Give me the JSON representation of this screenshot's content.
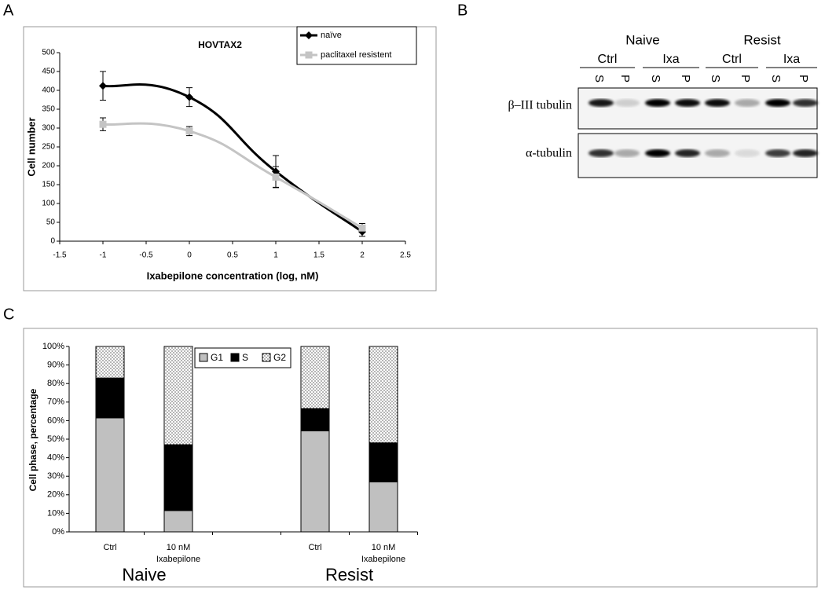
{
  "panels": [
    "A",
    "B",
    "C"
  ],
  "blot": {
    "groups": [
      "Naive",
      "Resist"
    ],
    "treatments": [
      "Ctrl",
      "Ixa",
      "Ctrl",
      "Ixa"
    ],
    "lanes": [
      "S",
      "P",
      "S",
      "P",
      "S",
      "P",
      "S",
      "P"
    ],
    "rows": [
      "β–III tubulin",
      "α-tubulin"
    ]
  },
  "chart_data": [
    {
      "type": "line",
      "title": "HOVTAX2",
      "xlabel": "Ixabepilone concentration (log, nM)",
      "ylabel": "Cell number",
      "x": [
        -1,
        0,
        1,
        2
      ],
      "series": [
        {
          "name": "naïve",
          "color": "#000000",
          "marker": "diamond",
          "values": [
            412,
            382,
            185,
            25
          ],
          "errors": [
            38,
            25,
            42,
            12
          ]
        },
        {
          "name": "paclitaxel resistent",
          "color": "#c4c4c4",
          "marker": "square",
          "values": [
            310,
            292,
            170,
            35
          ],
          "errors": [
            17,
            12,
            28,
            12
          ]
        }
      ],
      "xlim": [
        -1.5,
        2.5
      ],
      "xticks": [
        -1.5,
        -1,
        -0.5,
        0,
        0.5,
        1,
        1.5,
        2,
        2.5
      ],
      "ylim": [
        0,
        500
      ],
      "yticks": [
        0,
        50,
        100,
        150,
        200,
        250,
        300,
        350,
        400,
        450,
        500
      ]
    },
    {
      "type": "stacked_bar",
      "ylabel": "Cell phase, percentage",
      "categories": [
        "Ctrl",
        "10 nM\nIxabepilone",
        null,
        "Ctrl",
        "10 nM\nIxabepilone"
      ],
      "group_labels": [
        "Naive",
        "Resist"
      ],
      "series": [
        {
          "name": "G1",
          "color": "#c0c0c0",
          "values": [
            61.5,
            11.5,
            null,
            54.5,
            27
          ]
        },
        {
          "name": "S",
          "color": "#000000",
          "values": [
            21.5,
            35.5,
            null,
            12,
            21
          ]
        },
        {
          "name": "G2",
          "color": "#ffffff",
          "pattern": "dots",
          "values": [
            17,
            53,
            null,
            33.5,
            52
          ]
        }
      ],
      "ylim": [
        0,
        100
      ],
      "yticks": [
        {
          "value": 0,
          "label": "0%"
        },
        {
          "value": 10,
          "label": "10%"
        },
        {
          "value": 20,
          "label": "20%"
        },
        {
          "value": 30,
          "label": "30%"
        },
        {
          "value": 40,
          "label": "40%"
        },
        {
          "value": 50,
          "label": "50%"
        },
        {
          "value": 60,
          "label": "60%"
        },
        {
          "value": 70,
          "label": "70%"
        },
        {
          "value": 80,
          "label": "80%"
        },
        {
          "value": 90,
          "label": "90%"
        },
        {
          "value": 100,
          "label": "100%"
        }
      ]
    }
  ]
}
